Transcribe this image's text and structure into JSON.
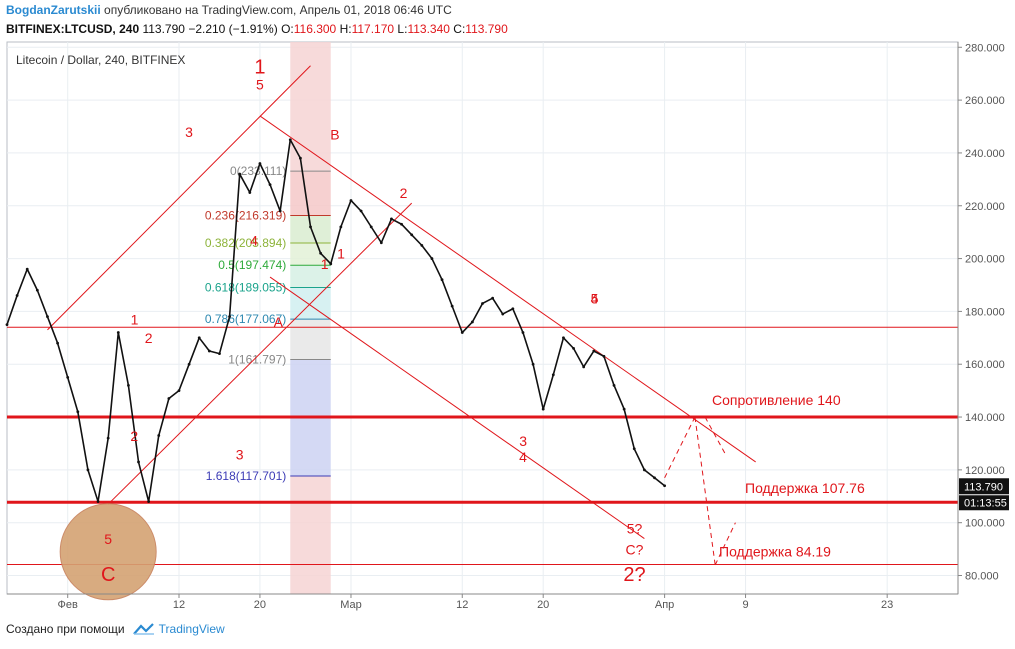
{
  "header": {
    "author": "BogdanZarutskii",
    "published": "опубликовано на TradingView.com, Апрель 01, 2018 06:46 UTC",
    "symbol": "BITFINEX:LTCUSD, 240",
    "last": "113.790",
    "change": "−2.210 (−1.91%)",
    "o_label": "O:",
    "o": "116.300",
    "h_label": "H:",
    "h": "117.170",
    "l_label": "L:",
    "l": "113.340",
    "c_label": "C:",
    "c": "113.790"
  },
  "chart_title": "Litecoin / Dollar, 240, BITFINEX",
  "footer": {
    "text": "Создано при помощи",
    "brand": "TradingView"
  },
  "colors": {
    "annotation": "#e0161b",
    "price": "#111111",
    "axis": "#555555",
    "grid": "#e9eef2",
    "circle": "#d4a273"
  },
  "chart_data": {
    "type": "line",
    "title": "Litecoin / Dollar, 240, BITFINEX",
    "x_tick_labels": [
      {
        "date": "2018-02-01",
        "label": "Фев"
      },
      {
        "date": "2018-02-12",
        "label": "12"
      },
      {
        "date": "2018-02-20",
        "label": "20"
      },
      {
        "date": "2018-03-01",
        "label": "Мар"
      },
      {
        "date": "2018-03-12",
        "label": "12"
      },
      {
        "date": "2018-03-20",
        "label": "20"
      },
      {
        "date": "2018-04-01",
        "label": "Апр"
      },
      {
        "date": "2018-04-09",
        "label": "9"
      },
      {
        "date": "2018-04-23",
        "label": "23"
      }
    ],
    "y_ticks": [
      "280.000",
      "260.000",
      "240.000",
      "220.000",
      "200.000",
      "180.000",
      "160.000",
      "140.000",
      "120.000",
      "100.000",
      "80.000"
    ],
    "ylim": [
      73,
      282
    ],
    "xlim": [
      "2018-01-26",
      "2018-04-30"
    ],
    "series": [
      {
        "x": [
          "2018-01-26",
          "2018-01-27",
          "2018-01-28",
          "2018-01-29",
          "2018-01-30",
          "2018-01-31",
          "2018-02-01",
          "2018-02-02",
          "2018-02-03",
          "2018-02-04",
          "2018-02-05",
          "2018-02-06",
          "2018-02-07",
          "2018-02-08",
          "2018-02-09",
          "2018-02-10",
          "2018-02-11",
          "2018-02-12",
          "2018-02-13",
          "2018-02-14",
          "2018-02-15",
          "2018-02-16",
          "2018-02-17",
          "2018-02-18",
          "2018-02-19",
          "2018-02-20",
          "2018-02-21",
          "2018-02-22",
          "2018-02-23",
          "2018-02-24",
          "2018-02-25",
          "2018-02-26",
          "2018-02-27",
          "2018-02-28",
          "2018-03-01",
          "2018-03-02",
          "2018-03-03",
          "2018-03-04",
          "2018-03-05",
          "2018-03-06",
          "2018-03-07",
          "2018-03-08",
          "2018-03-09",
          "2018-03-10",
          "2018-03-11",
          "2018-03-12",
          "2018-03-13",
          "2018-03-14",
          "2018-03-15",
          "2018-03-16",
          "2018-03-17",
          "2018-03-18",
          "2018-03-19",
          "2018-03-20",
          "2018-03-21",
          "2018-03-22",
          "2018-03-23",
          "2018-03-24",
          "2018-03-25",
          "2018-03-26",
          "2018-03-27",
          "2018-03-28",
          "2018-03-29",
          "2018-03-30",
          "2018-03-31",
          "2018-04-01"
        ],
        "y": [
          175,
          186,
          196,
          188,
          178,
          168,
          155,
          142,
          120,
          108,
          132,
          172,
          152,
          123,
          108,
          133,
          147,
          150,
          160,
          170,
          165,
          164,
          178,
          232,
          225,
          236,
          228,
          218,
          245,
          238,
          212,
          202,
          198,
          212,
          222,
          218,
          212,
          206,
          215,
          213,
          209,
          205,
          200,
          192,
          182,
          172,
          176,
          183,
          185,
          179,
          181,
          172,
          160,
          143,
          156,
          170,
          166,
          159,
          165,
          163,
          152,
          143,
          128,
          120,
          117,
          114
        ]
      }
    ],
    "annotations": {
      "wave_labels": [
        "1",
        "2",
        "3",
        "4",
        "5",
        "1",
        "2",
        "3",
        "4",
        "5?",
        "C?",
        "2?",
        "A",
        "B",
        "C",
        "5",
        "4",
        "1",
        "5",
        "3",
        "2",
        "1"
      ],
      "levels": [
        {
          "value": 140,
          "label": "Сопротивление 140"
        },
        {
          "value": 107.76,
          "label": "Поддержка 107.76"
        },
        {
          "value": 84.19,
          "label": "Поддержка 84.19"
        },
        {
          "value": 174,
          "label": ""
        }
      ],
      "fibonacci": [
        {
          "ratio": "0",
          "price": "233.111",
          "label": "0(233.111)"
        },
        {
          "ratio": "0.236",
          "price": "216.319",
          "label": "0.236(216.319)"
        },
        {
          "ratio": "0.382",
          "price": "205.894",
          "label": "0.382(205.894)"
        },
        {
          "ratio": "0.5",
          "price": "197.474",
          "label": "0.5(197.474)"
        },
        {
          "ratio": "0.618",
          "price": "189.055",
          "label": "0.618(189.055)"
        },
        {
          "ratio": "0.786",
          "price": "177.067",
          "label": "0.786(177.067)"
        },
        {
          "ratio": "1",
          "price": "161.797",
          "label": "1(161.797)"
        },
        {
          "ratio": "1.618",
          "price": "117.701",
          "label": "1.618(117.701)"
        }
      ],
      "price_tag": "113.790",
      "time_tag": "01:13:55"
    }
  }
}
